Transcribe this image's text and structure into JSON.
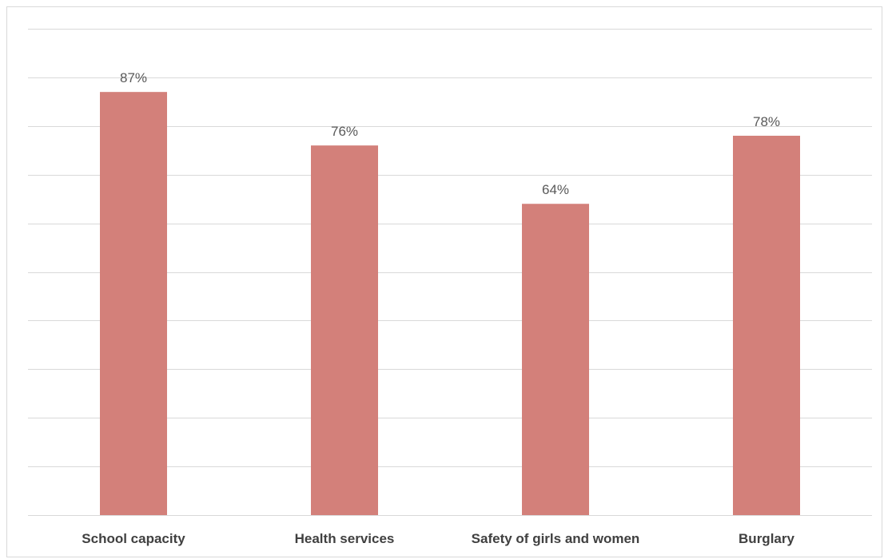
{
  "chart_data": {
    "type": "bar",
    "title": "",
    "xlabel": "",
    "ylabel": "",
    "categories": [
      "School capacity",
      "Health services",
      "Safety of girls and women",
      "Burglary"
    ],
    "values": [
      87,
      76,
      64,
      78
    ],
    "data_labels": [
      "87%",
      "76%",
      "64%",
      "78%"
    ],
    "ylim": [
      0,
      100
    ],
    "y_gridline_step": 10,
    "y_tick_labels_shown": false,
    "grid": true,
    "legend": "none",
    "bar_color": "#d3807a",
    "grid_color": "#d9d9d9"
  }
}
